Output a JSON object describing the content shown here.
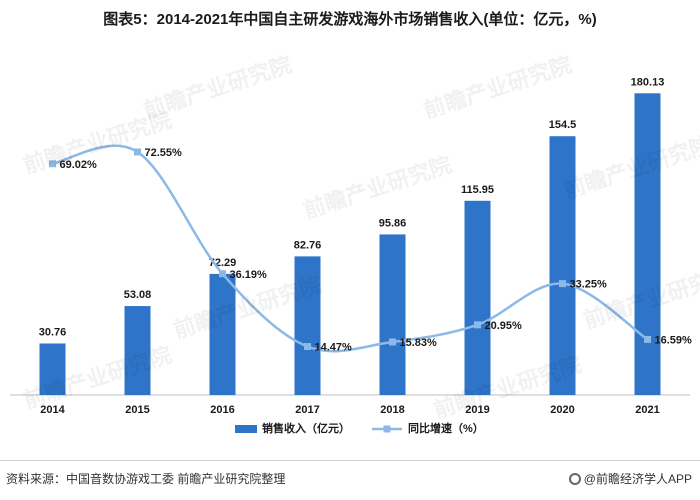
{
  "title": "图表5：2014-2021年中国自主研发游戏海外市场销售收入(单位：亿元，%)",
  "source": "资料来源：中国音数协游戏工委 前瞻产业研究院整理",
  "brand": "@前瞻经济学人APP",
  "watermark": "前瞻产业研究院",
  "colors": {
    "bar": "#2e75c9",
    "line": "#8cb9e6",
    "marker": "#8cb9e6",
    "text": "#1a1a1a"
  },
  "chart_data": {
    "type": "bar",
    "categories": [
      "2014",
      "2015",
      "2016",
      "2017",
      "2018",
      "2019",
      "2020",
      "2021"
    ],
    "series": [
      {
        "name": "销售收入（亿元）",
        "type": "bar",
        "axis": "left",
        "values": [
          30.76,
          53.08,
          72.29,
          82.76,
          95.86,
          115.95,
          154.5,
          180.13
        ],
        "labels": [
          "30.76",
          "53.08",
          "72.29",
          "82.76",
          "95.86",
          "115.95",
          "154.5",
          "180.13"
        ]
      },
      {
        "name": "同比增速（%）",
        "type": "line",
        "axis": "right",
        "smooth": true,
        "values": [
          69.02,
          72.55,
          36.19,
          14.47,
          15.83,
          20.95,
          33.25,
          16.59
        ],
        "labels": [
          "69.02%",
          "72.55%",
          "36.19%",
          "14.47%",
          "15.83%",
          "20.95%",
          "33.25%",
          "16.59%"
        ]
      }
    ],
    "ylim_left": [
      0,
      200
    ],
    "ylim_right": [
      0,
      100
    ],
    "grid": false,
    "legend": "bottom-center"
  }
}
